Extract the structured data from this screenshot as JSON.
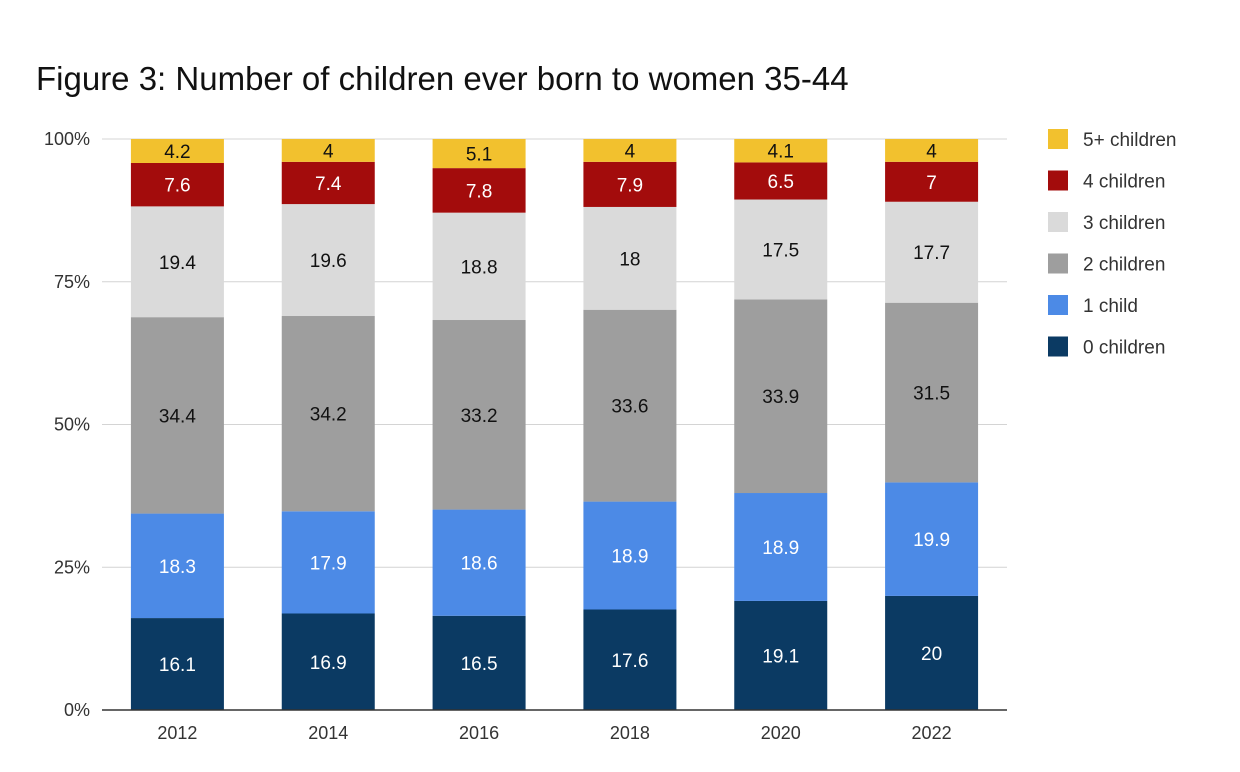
{
  "chart_data": {
    "type": "bar",
    "stacked": "percent",
    "title": "Figure 3: Number of children ever born to women 35-44",
    "xlabel": "",
    "ylabel": "",
    "categories": [
      "2012",
      "2014",
      "2016",
      "2018",
      "2020",
      "2022"
    ],
    "y_ticks": [
      "0%",
      "25%",
      "50%",
      "75%",
      "100%"
    ],
    "ylim": [
      0,
      100
    ],
    "grid": true,
    "legend_position": "right",
    "series": [
      {
        "name": "0 children",
        "color": "#0b3a63",
        "label_color": "#ffffff",
        "values": [
          16.1,
          16.9,
          16.5,
          17.6,
          19.1,
          20
        ]
      },
      {
        "name": "1 child",
        "color": "#4c8ae6",
        "label_color": "#ffffff",
        "values": [
          18.3,
          17.9,
          18.6,
          18.9,
          18.9,
          19.9
        ]
      },
      {
        "name": "2 children",
        "color": "#9e9e9e",
        "label_color": "#111111",
        "values": [
          34.4,
          34.2,
          33.2,
          33.6,
          33.9,
          31.5
        ]
      },
      {
        "name": "3 children",
        "color": "#dadada",
        "label_color": "#111111",
        "values": [
          19.4,
          19.6,
          18.8,
          18,
          17.5,
          17.7
        ]
      },
      {
        "name": "4 children",
        "color": "#a30c0c",
        "label_color": "#ffffff",
        "values": [
          7.6,
          7.4,
          7.8,
          7.9,
          6.5,
          7
        ]
      },
      {
        "name": "5+ children",
        "color": "#f2c12e",
        "label_color": "#111111",
        "values": [
          4.2,
          4,
          5.1,
          4,
          4.1,
          4
        ]
      }
    ]
  }
}
